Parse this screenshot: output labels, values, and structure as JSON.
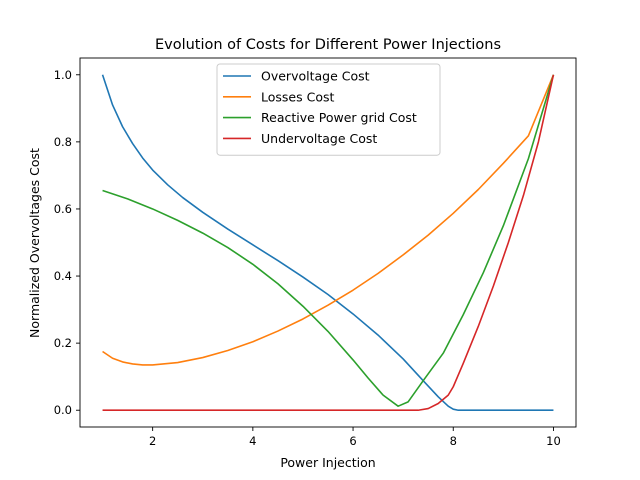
{
  "chart_data": {
    "type": "line",
    "title": "Evolution of  Costs for Different Power Injections",
    "xlabel": "Power Injection",
    "ylabel": "Normalized Overvoltages Cost",
    "xlim": [
      0.55,
      10.45
    ],
    "ylim": [
      -0.05,
      1.05
    ],
    "xticks": [
      2,
      4,
      6,
      8,
      10
    ],
    "yticks": [
      0.0,
      0.2,
      0.4,
      0.6,
      0.8,
      1.0
    ],
    "xtick_labels": [
      "2",
      "4",
      "6",
      "8",
      "10"
    ],
    "ytick_labels": [
      "0.0",
      "0.2",
      "0.4",
      "0.6",
      "0.8",
      "1.0"
    ],
    "grid": false,
    "legend_position": "top-center",
    "series": [
      {
        "name": "Overvoltage Cost",
        "color": "#1f77b4",
        "x": [
          1.0,
          1.2,
          1.4,
          1.6,
          1.8,
          2.0,
          2.3,
          2.6,
          3.0,
          3.5,
          4.0,
          4.5,
          5.0,
          5.5,
          6.0,
          6.5,
          7.0,
          7.4,
          7.7,
          7.9,
          8.0,
          8.1,
          8.3,
          8.6,
          9.0,
          9.5,
          10.0
        ],
        "y": [
          1.0,
          0.91,
          0.845,
          0.795,
          0.752,
          0.716,
          0.672,
          0.634,
          0.59,
          0.54,
          0.493,
          0.446,
          0.397,
          0.345,
          0.287,
          0.224,
          0.153,
          0.088,
          0.04,
          0.012,
          0.003,
          0.0,
          0.0,
          0.0,
          0.0,
          0.0,
          0.0
        ]
      },
      {
        "name": "Losses Cost",
        "color": "#ff7f0e",
        "x": [
          1.0,
          1.2,
          1.4,
          1.6,
          1.8,
          2.0,
          2.5,
          3.0,
          3.5,
          4.0,
          4.5,
          5.0,
          5.5,
          6.0,
          6.5,
          7.0,
          7.5,
          8.0,
          8.5,
          9.0,
          9.5,
          10.0
        ],
        "y": [
          0.175,
          0.155,
          0.144,
          0.138,
          0.135,
          0.135,
          0.142,
          0.157,
          0.178,
          0.204,
          0.236,
          0.272,
          0.313,
          0.358,
          0.408,
          0.463,
          0.522,
          0.587,
          0.658,
          0.736,
          0.818,
          1.0
        ]
      },
      {
        "name": "Reactive Power grid Cost",
        "color": "#2ca02c",
        "x": [
          1.0,
          1.5,
          2.0,
          2.5,
          3.0,
          3.5,
          4.0,
          4.5,
          5.0,
          5.5,
          6.0,
          6.3,
          6.6,
          6.9,
          7.1,
          7.4,
          7.8,
          8.2,
          8.6,
          9.0,
          9.5,
          10.0
        ],
        "y": [
          0.655,
          0.63,
          0.6,
          0.566,
          0.528,
          0.485,
          0.435,
          0.377,
          0.31,
          0.235,
          0.15,
          0.096,
          0.045,
          0.012,
          0.025,
          0.088,
          0.17,
          0.285,
          0.41,
          0.55,
          0.75,
          1.0
        ]
      },
      {
        "name": "Undervoltage Cost",
        "color": "#d62728",
        "x": [
          1.0,
          2.0,
          3.0,
          4.0,
          5.0,
          6.0,
          7.0,
          7.3,
          7.5,
          7.7,
          7.9,
          8.0,
          8.2,
          8.5,
          8.8,
          9.1,
          9.4,
          9.7,
          10.0
        ],
        "y": [
          0.0,
          0.0,
          0.0,
          0.0,
          0.0,
          0.0,
          0.0,
          0.0,
          0.005,
          0.02,
          0.045,
          0.07,
          0.14,
          0.25,
          0.37,
          0.5,
          0.64,
          0.8,
          1.0
        ]
      }
    ]
  }
}
